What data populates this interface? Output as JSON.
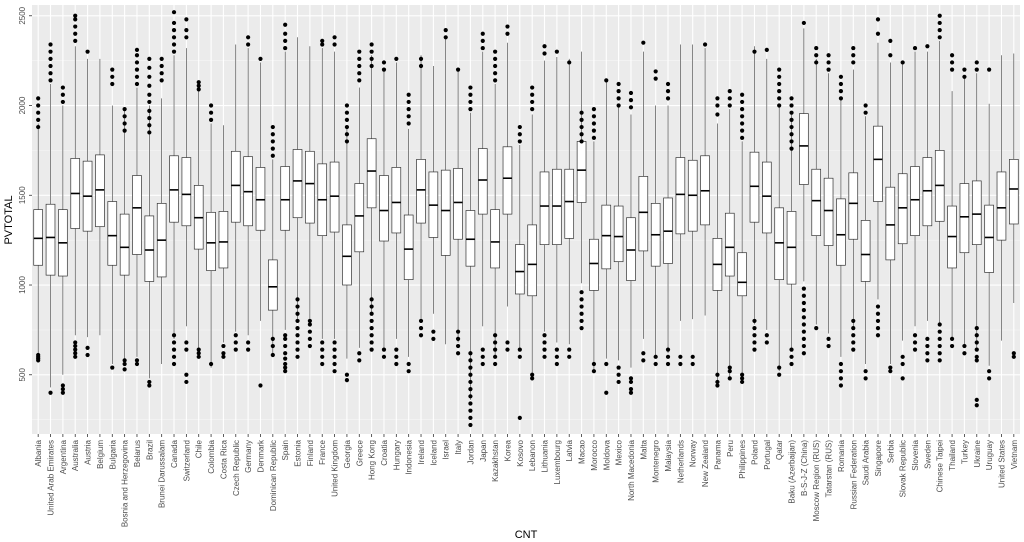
{
  "chart_data": {
    "type": "boxplot",
    "xlabel": "CNT",
    "ylabel": "PVTOTAL",
    "ylim": [
      170,
      2560
    ],
    "yticks": [
      500,
      1000,
      1500,
      2000,
      2500
    ],
    "grid": true,
    "colors": {
      "panel": "#ebebeb",
      "grid_major": "#ffffff",
      "box_fill": "#ffffff",
      "box_line": "#333333",
      "tick_text": "#4d4d4d"
    },
    "categories": [
      "Albania",
      "United Arab Emirates",
      "Argentina",
      "Australia",
      "Austria",
      "Belgium",
      "Bulgaria",
      "Bosnia and Herzegovina",
      "Belarus",
      "Brazil",
      "Brunei Darussalam",
      "Canada",
      "Switzerland",
      "Chile",
      "Colombia",
      "Costa Rica",
      "Czech Republic",
      "Germany",
      "Denmark",
      "Dominican Republic",
      "Spain",
      "Estonia",
      "Finland",
      "France",
      "United Kingdom",
      "Georgia",
      "Greece",
      "Hong Kong",
      "Croatia",
      "Hungary",
      "Indonesia",
      "Ireland",
      "Iceland",
      "Israel",
      "Italy",
      "Jordan",
      "Japan",
      "Kazakhstan",
      "Korea",
      "Kosovo",
      "Lebanon",
      "Lithuania",
      "Luxembourg",
      "Latvia",
      "Macao",
      "Morocco",
      "Moldova",
      "Mexico",
      "North Macedonia",
      "Malta",
      "Montenegro",
      "Malaysia",
      "Netherlands",
      "Norway",
      "New Zealand",
      "Panama",
      "Peru",
      "Philippines",
      "Poland",
      "Portugal",
      "Qatar",
      "Baku (Azerbaijan)",
      "B-S-J-Z (China)",
      "Moscow Region (RUS)",
      "Tatarstan (RUS)",
      "Romania",
      "Russian Federation",
      "Saudi Arabia",
      "Singapore",
      "Serbia",
      "Slovak Republic",
      "Slovenia",
      "Sweden",
      "Chinese Taipei",
      "Thailand",
      "Turkey",
      "Ukraine",
      "Uruguay",
      "United States",
      "Vietnam"
    ],
    "q1": [
      1110,
      1055,
      1050,
      1315,
      1300,
      1325,
      1110,
      1055,
      1170,
      1020,
      1045,
      1350,
      1330,
      1200,
      1080,
      1095,
      1350,
      1330,
      1305,
      860,
      1305,
      1375,
      1345,
      1275,
      1295,
      1000,
      1185,
      1430,
      1245,
      1290,
      1030,
      1345,
      1265,
      1165,
      1255,
      1105,
      1395,
      1095,
      1395,
      950,
      940,
      1225,
      1225,
      1260,
      1460,
      970,
      1090,
      1130,
      1025,
      1190,
      1105,
      1120,
      1285,
      1300,
      1335,
      970,
      1050,
      940,
      1350,
      1290,
      1030,
      1005,
      1560,
      1275,
      1220,
      1110,
      1255,
      1020,
      1465,
      1140,
      1230,
      1275,
      1330,
      1355,
      1095,
      1180,
      1225,
      1070,
      1250,
      1340
    ],
    "median": [
      1260,
      1265,
      1235,
      1510,
      1495,
      1530,
      1275,
      1210,
      1430,
      1195,
      1250,
      1530,
      1505,
      1375,
      1235,
      1240,
      1555,
      1520,
      1475,
      990,
      1475,
      1580,
      1565,
      1475,
      1495,
      1160,
      1385,
      1635,
      1415,
      1460,
      1200,
      1530,
      1445,
      1415,
      1460,
      1255,
      1585,
      1240,
      1595,
      1075,
      1115,
      1440,
      1440,
      1465,
      1640,
      1120,
      1275,
      1270,
      1195,
      1405,
      1280,
      1300,
      1505,
      1500,
      1525,
      1115,
      1210,
      1015,
      1550,
      1495,
      1235,
      1210,
      1775,
      1470,
      1415,
      1280,
      1455,
      1170,
      1700,
      1335,
      1430,
      1475,
      1525,
      1555,
      1270,
      1380,
      1395,
      1265,
      1430,
      1535
    ],
    "q3": [
      1420,
      1450,
      1420,
      1705,
      1690,
      1725,
      1465,
      1395,
      1610,
      1385,
      1455,
      1720,
      1710,
      1555,
      1405,
      1410,
      1745,
      1715,
      1655,
      1140,
      1660,
      1755,
      1745,
      1675,
      1685,
      1335,
      1565,
      1815,
      1610,
      1655,
      1390,
      1700,
      1630,
      1640,
      1650,
      1415,
      1760,
      1420,
      1770,
      1225,
      1335,
      1630,
      1645,
      1645,
      1800,
      1255,
      1445,
      1440,
      1375,
      1605,
      1455,
      1485,
      1710,
      1695,
      1720,
      1260,
      1400,
      1180,
      1740,
      1685,
      1430,
      1410,
      1955,
      1645,
      1595,
      1480,
      1625,
      1360,
      1885,
      1545,
      1620,
      1660,
      1710,
      1750,
      1440,
      1565,
      1580,
      1445,
      1630,
      1700
    ],
    "lower_whisker": [
      580,
      430,
      500,
      720,
      710,
      720,
      560,
      560,
      600,
      480,
      560,
      700,
      770,
      650,
      540,
      680,
      740,
      720,
      800,
      620,
      750,
      800,
      780,
      700,
      700,
      590,
      650,
      830,
      650,
      700,
      600,
      810,
      840,
      670,
      680,
      360,
      770,
      600,
      880,
      630,
      500,
      740,
      680,
      670,
      1010,
      520,
      590,
      580,
      540,
      700,
      600,
      620,
      800,
      810,
      830,
      460,
      480,
      500,
      780,
      750,
      520,
      650,
      1020,
      780,
      730,
      600,
      760,
      560,
      920,
      560,
      690,
      770,
      800,
      790,
      700,
      650,
      650,
      550,
      690,
      900
    ],
    "upper_whisker": [
      1900,
      2120,
      2000,
      2330,
      2260,
      2260,
      2000,
      1970,
      2100,
      2000,
      2040,
      2280,
      2320,
      2080,
      1900,
      1890,
      2340,
      2320,
      2240,
      1700,
      2300,
      2380,
      2330,
      2320,
      2300,
      1870,
      2100,
      2280,
      2190,
      2240,
      1870,
      2280,
      2220,
      2380,
      2190,
      1960,
      2300,
      2120,
      2350,
      1780,
      1950,
      2250,
      2270,
      2260,
      2300,
      1800,
      2130,
      2000,
      1950,
      2300,
      2000,
      2000,
      2340,
      2340,
      2320,
      1900,
      1980,
      1800,
      2330,
      2260,
      2000,
      1960,
      2430,
      2260,
      2180,
      2040,
      2200,
      1940,
      2350,
      2240,
      2230,
      2300,
      2300,
      2360,
      2080,
      2160,
      2180,
      2010,
      2280,
      2290
    ],
    "outliers": [
      [
        580,
        590,
        600,
        610,
        1880,
        1920,
        1960,
        2000,
        2040
      ],
      [
        400,
        2140,
        2180,
        2220,
        2260,
        2300,
        2340
      ],
      [
        400,
        420,
        440,
        2020,
        2060,
        2100
      ],
      [
        600,
        620,
        640,
        660,
        680,
        2360,
        2400,
        2440,
        2480,
        2500
      ],
      [
        610,
        650,
        2300
      ],
      [],
      [
        540,
        2120,
        2160,
        2200
      ],
      [
        530,
        560,
        580,
        1860,
        1900,
        1940,
        1980
      ],
      [
        560,
        580,
        2120,
        2160,
        2200,
        2240,
        2280,
        2310
      ],
      [
        440,
        460,
        1850,
        1890,
        1930,
        1970,
        2020,
        2060,
        2110,
        2160,
        2210,
        2260
      ],
      [
        2140,
        2180,
        2220,
        2260
      ],
      [
        560,
        600,
        640,
        680,
        720,
        2300,
        2340,
        2380,
        2420,
        2460,
        2520
      ],
      [
        460,
        500,
        640,
        680,
        2380,
        2420,
        2480
      ],
      [
        600,
        620,
        640,
        2090,
        2110,
        2130
      ],
      [
        560,
        1920,
        1960,
        2000
      ],
      [
        600,
        620,
        660
      ],
      [
        640,
        680,
        720
      ],
      [
        640,
        680,
        2340,
        2380
      ],
      [
        440,
        2260
      ],
      [
        610,
        660,
        700,
        1720,
        1760,
        1800,
        1840,
        1880
      ],
      [
        520,
        540,
        560,
        590,
        620,
        660,
        700,
        720,
        2320,
        2360,
        2400,
        2450
      ],
      [
        600,
        640,
        680,
        720,
        760,
        800,
        840,
        880,
        920
      ],
      [
        660,
        700,
        740,
        780,
        800
      ],
      [
        560,
        600,
        640,
        680,
        2340,
        2360
      ],
      [
        520,
        560,
        600,
        640,
        680,
        2340,
        2380
      ],
      [
        470,
        500,
        1800,
        1840,
        1880,
        1920,
        1960,
        2000
      ],
      [
        580,
        620,
        2140,
        2180,
        2220,
        2260,
        2300
      ],
      [
        640,
        680,
        720,
        760,
        800,
        840,
        880,
        920,
        2220,
        2260,
        2300,
        2340
      ],
      [
        600,
        640,
        2200,
        2240
      ],
      [
        560,
        600,
        640,
        2260
      ],
      [
        520,
        560,
        1900,
        1940,
        1980,
        2020,
        2060
      ],
      [
        720,
        760,
        800,
        2220,
        2260
      ],
      [
        700,
        740
      ],
      [
        2380,
        2420
      ],
      [
        620,
        660,
        700,
        740,
        2200
      ],
      [
        220,
        260,
        300,
        340,
        380,
        420,
        460,
        500,
        540,
        580,
        620,
        1980,
        2020,
        2060,
        2100
      ],
      [
        560,
        600,
        640,
        2320,
        2360,
        2400
      ],
      [
        560,
        600,
        640,
        680,
        720,
        2140,
        2180,
        2220,
        2260,
        2300
      ],
      [
        640,
        680,
        2400,
        2440
      ],
      [
        260,
        600,
        640,
        1800,
        1840,
        1880
      ],
      [
        480,
        500,
        1980,
        2020,
        2060,
        2100
      ],
      [
        600,
        640,
        680,
        720,
        2290,
        2330
      ],
      [
        560,
        600,
        640,
        2300
      ],
      [
        600,
        640,
        2240
      ],
      [
        760,
        800,
        840,
        880,
        920,
        960,
        1800,
        1840,
        1880,
        1920,
        1960
      ],
      [
        520,
        560,
        1820,
        1860,
        1900,
        1940,
        1980
      ],
      [
        400,
        560,
        2140
      ],
      [
        460,
        500,
        540,
        2000,
        2040,
        2080,
        2120
      ],
      [
        400,
        420,
        460,
        480,
        1990,
        2030,
        2070
      ],
      [
        580,
        620,
        2350
      ],
      [
        560,
        600,
        2150,
        2190
      ],
      [
        560,
        600,
        640,
        2040,
        2080,
        2120
      ],
      [
        560,
        600
      ],
      [
        560,
        600
      ],
      [
        2340
      ],
      [
        440,
        460,
        500,
        1950,
        2000,
        2040
      ],
      [
        480,
        520,
        540,
        2000,
        2040,
        2080
      ],
      [
        460,
        480,
        500,
        1820,
        1860,
        1900,
        1940,
        1980,
        2020,
        2060
      ],
      [
        640,
        680,
        720,
        760,
        800,
        2300
      ],
      [
        680,
        720,
        2310
      ],
      [
        500,
        540,
        2000,
        2040,
        2080,
        2120,
        2160,
        2200
      ],
      [
        560,
        600,
        640,
        1760,
        1800,
        1840,
        1880,
        1920,
        1960,
        2000,
        2040
      ],
      [
        620,
        660,
        700,
        740,
        780,
        820,
        860,
        900,
        940,
        980,
        2460
      ],
      [
        760,
        2240,
        2280,
        2320
      ],
      [
        660,
        700,
        2200,
        2240,
        2280
      ],
      [
        440,
        480,
        520,
        560,
        2040,
        2080,
        2120,
        2160
      ],
      [
        640,
        680,
        720,
        760,
        800,
        2240,
        2280,
        2320
      ],
      [
        480,
        520,
        1960,
        2000
      ],
      [
        720,
        760,
        800,
        840,
        880,
        2400,
        2480
      ],
      [
        520,
        540,
        2280,
        2360
      ],
      [
        480,
        560,
        600,
        2240
      ],
      [
        640,
        680,
        720,
        2320
      ],
      [
        580,
        620,
        660,
        700,
        2330
      ],
      [
        580,
        620,
        660,
        700,
        740,
        780,
        2380,
        2420,
        2460,
        2500
      ],
      [
        660,
        700,
        2200,
        2240,
        2280
      ],
      [
        620,
        660,
        2160,
        2200
      ],
      [
        330,
        360,
        580,
        600,
        640,
        680,
        720,
        760,
        2200,
        2240
      ],
      [
        480,
        520,
        2200
      ],
      [],
      [
        600,
        620
      ]
    ]
  }
}
